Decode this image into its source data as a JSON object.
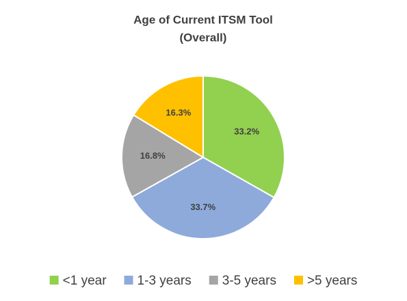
{
  "chart_data": {
    "type": "pie",
    "title": "Age of Current ITSM Tool",
    "subtitle": "(Overall)",
    "categories": [
      "<1 year",
      "1-3 years",
      "3-5 years",
      ">5 years"
    ],
    "values": [
      33.2,
      33.7,
      16.8,
      16.3
    ],
    "value_labels": [
      "33.2%",
      "33.7%",
      "16.8%",
      "16.3%"
    ],
    "colors": [
      "#92d050",
      "#8eaadb",
      "#a5a5a5",
      "#ffc000"
    ]
  }
}
